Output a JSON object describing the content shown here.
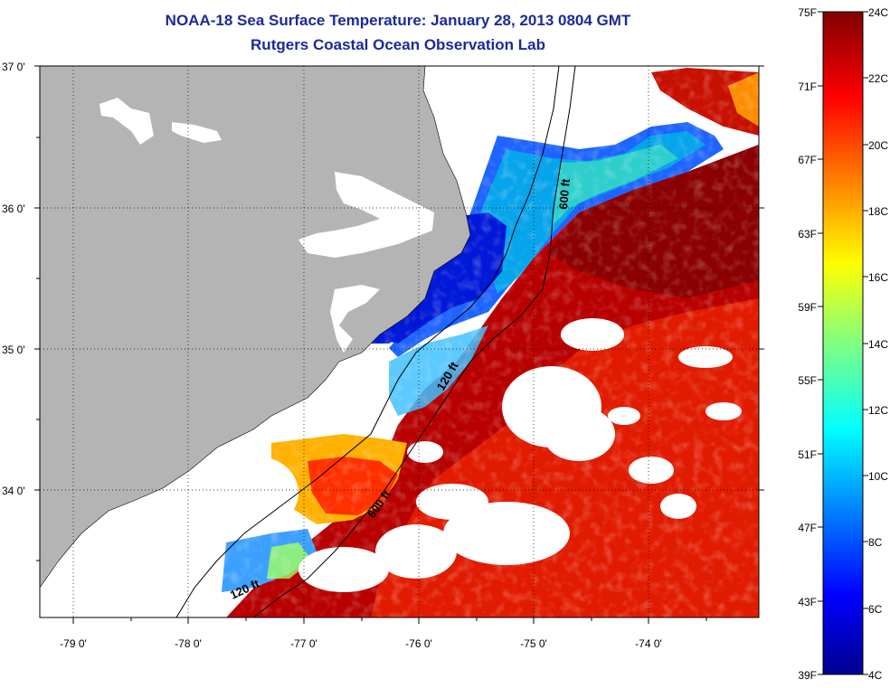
{
  "title": {
    "line1": "NOAA-18 Sea Surface Temperature:  January 28, 2013 0804 GMT",
    "line2": "Rutgers Coastal Ocean Observation Lab"
  },
  "map": {
    "latitude_labels": [
      "37 0'",
      "36 0'",
      "35 0'",
      "34 0'"
    ],
    "longitude_labels": [
      "-79 0'",
      "-78 0'",
      "-77 0'",
      "-76 0'",
      "-75 0'",
      "-74 0'"
    ],
    "isobath_labels": [
      "600 ft",
      "120 ft",
      "600 ft",
      "120 ft"
    ],
    "colors": {
      "land": "#b4b4b4",
      "no_data": "#ffffff",
      "warm": "#8b0000",
      "cold": "#0000cd"
    }
  },
  "colorbar": {
    "fahrenheit_labels": [
      "75F",
      "71F",
      "67F",
      "63F",
      "59F",
      "55F",
      "51F",
      "47F",
      "43F",
      "39F"
    ],
    "celsius_labels": [
      "24C",
      "22C",
      "20C",
      "18C",
      "16C",
      "14C",
      "12C",
      "10C",
      "8C",
      "6C",
      "4C"
    ]
  }
}
